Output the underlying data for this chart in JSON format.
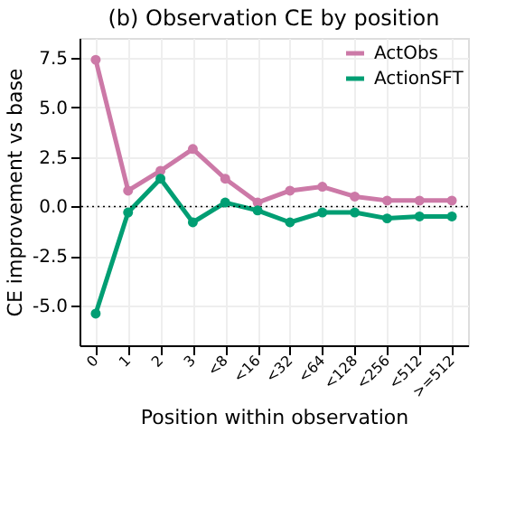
{
  "chart_data": {
    "type": "line",
    "title": "(b) Observation CE by position",
    "xlabel": "Position within observation",
    "ylabel": "CE improvement vs base",
    "categories": [
      "0",
      "1",
      "2",
      "3",
      "<8",
      "<16",
      "<32",
      "<64",
      "<128",
      "<256",
      "<512",
      ">=512"
    ],
    "series": [
      {
        "name": "ActObs",
        "color": "#cc79a7",
        "values": [
          7.4,
          0.8,
          1.8,
          2.9,
          1.4,
          0.2,
          0.8,
          1.0,
          0.5,
          0.3,
          0.3,
          0.3
        ]
      },
      {
        "name": "ActionSFT",
        "color": "#009e73",
        "values": [
          -5.4,
          -0.3,
          1.4,
          -0.8,
          0.2,
          -0.2,
          -0.8,
          -0.3,
          -0.3,
          -0.6,
          -0.5,
          -0.5
        ]
      }
    ],
    "ylim": [
      -7,
      8.5
    ],
    "yticks": [
      {
        "value": -5,
        "label": "-5.0"
      },
      {
        "value": -2.5,
        "label": "-2.5"
      },
      {
        "value": 0,
        "label": "0.0"
      },
      {
        "value": 2.5,
        "label": "2.5"
      },
      {
        "value": 5,
        "label": "5.0"
      },
      {
        "value": 7.5,
        "label": "7.5"
      }
    ],
    "ref_lines": [
      {
        "axis": "y",
        "value": 0,
        "color": "#000000",
        "line_style": "dotted"
      }
    ],
    "grid": true,
    "legend": "top right",
    "marker": "circle",
    "line_style": "solid"
  }
}
